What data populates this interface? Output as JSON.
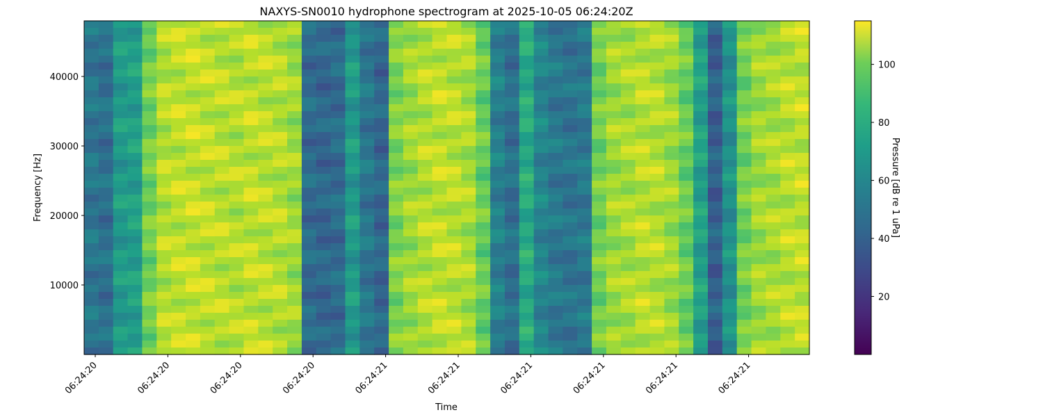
{
  "chart_data": {
    "type": "heatmap",
    "title": "NAXYS-SN0010 hydrophone spectrogram at 2025-10-05 06:24:20Z",
    "xlabel": "Time",
    "ylabel": "Frequency [Hz]",
    "colorbar_label": "Pressure [dB re 1 uPa]",
    "colormap": "viridis",
    "color_range": [
      0,
      115
    ],
    "colorbar_ticks": [
      20,
      40,
      60,
      80,
      100
    ],
    "ylim": [
      0,
      48000
    ],
    "y_ticks": [
      10000,
      20000,
      30000,
      40000
    ],
    "x_tick_labels": [
      "06:24:20",
      "06:24:20",
      "06:24:20",
      "06:24:20",
      "06:24:21",
      "06:24:21",
      "06:24:21",
      "06:24:21",
      "06:24:21",
      "06:24:21"
    ],
    "grid": false,
    "time_profile_db": [
      45,
      42,
      62,
      64,
      90,
      102,
      104,
      105,
      104,
      103,
      102,
      104,
      103,
      102,
      98,
      40,
      38,
      40,
      62,
      45,
      38,
      92,
      98,
      102,
      104,
      103,
      100,
      88,
      50,
      42,
      70,
      52,
      46,
      44,
      46,
      90,
      98,
      100,
      103,
      102,
      98,
      88,
      65,
      35,
      58,
      90,
      98,
      100,
      103,
      104
    ]
  }
}
